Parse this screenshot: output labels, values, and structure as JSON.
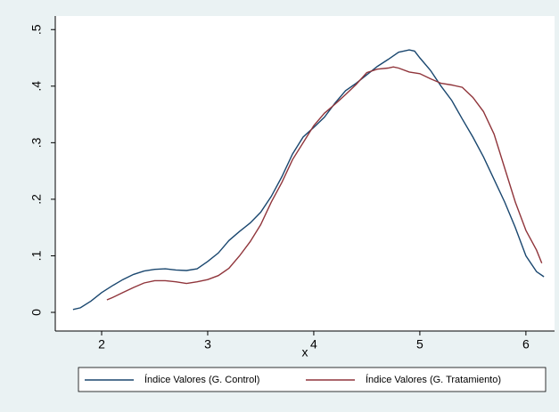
{
  "chart_data": {
    "type": "line",
    "x_label": "x",
    "xlim": [
      1.563,
      6.27
    ],
    "xticks": [
      2,
      3,
      4,
      5,
      6
    ],
    "ylim": [
      -0.033,
      0.524
    ],
    "yticks": [
      0,
      {
        "value": 0.1,
        "label": ".1"
      },
      {
        "value": 0.2,
        "label": ".2"
      },
      {
        "value": 0.3,
        "label": ".3"
      },
      {
        "value": 0.4,
        "label": ".4"
      },
      {
        "value": 0.5,
        "label": ".5"
      }
    ],
    "series": [
      {
        "name": "Índice Valores (G. Control)",
        "color": "#1a476f",
        "x": [
          1.73,
          1.8,
          1.9,
          2.0,
          2.1,
          2.2,
          2.3,
          2.4,
          2.5,
          2.6,
          2.7,
          2.8,
          2.9,
          3.0,
          3.1,
          3.2,
          3.3,
          3.4,
          3.5,
          3.6,
          3.7,
          3.8,
          3.9,
          4.0,
          4.1,
          4.2,
          4.3,
          4.4,
          4.5,
          4.6,
          4.7,
          4.8,
          4.9,
          4.95,
          5.0,
          5.1,
          5.2,
          5.3,
          5.4,
          5.5,
          5.6,
          5.7,
          5.8,
          5.9,
          6.0,
          6.1,
          6.17
        ],
        "values": [
          0.005,
          0.008,
          0.02,
          0.035,
          0.047,
          0.058,
          0.067,
          0.073,
          0.076,
          0.077,
          0.075,
          0.074,
          0.077,
          0.09,
          0.105,
          0.127,
          0.143,
          0.158,
          0.177,
          0.205,
          0.24,
          0.28,
          0.31,
          0.327,
          0.345,
          0.37,
          0.392,
          0.405,
          0.42,
          0.435,
          0.447,
          0.46,
          0.464,
          0.462,
          0.45,
          0.428,
          0.4,
          0.375,
          0.342,
          0.31,
          0.275,
          0.235,
          0.195,
          0.15,
          0.1,
          0.072,
          0.063
        ]
      },
      {
        "name": "Índice Valores (G. Tratamiento)",
        "color": "#90353b",
        "x": [
          2.05,
          2.1,
          2.2,
          2.3,
          2.4,
          2.5,
          2.6,
          2.7,
          2.8,
          2.9,
          3.0,
          3.1,
          3.2,
          3.3,
          3.4,
          3.5,
          3.6,
          3.7,
          3.8,
          3.9,
          4.0,
          4.1,
          4.2,
          4.3,
          4.4,
          4.5,
          4.6,
          4.7,
          4.75,
          4.8,
          4.9,
          5.0,
          5.1,
          5.2,
          5.3,
          5.4,
          5.5,
          5.6,
          5.7,
          5.8,
          5.9,
          6.0,
          6.1,
          6.15
        ],
        "values": [
          0.022,
          0.026,
          0.035,
          0.044,
          0.052,
          0.056,
          0.056,
          0.054,
          0.051,
          0.054,
          0.058,
          0.065,
          0.078,
          0.1,
          0.125,
          0.155,
          0.195,
          0.23,
          0.27,
          0.3,
          0.33,
          0.352,
          0.368,
          0.385,
          0.403,
          0.424,
          0.43,
          0.432,
          0.434,
          0.432,
          0.425,
          0.422,
          0.413,
          0.405,
          0.402,
          0.398,
          0.38,
          0.355,
          0.315,
          0.255,
          0.195,
          0.145,
          0.11,
          0.087
        ]
      }
    ]
  }
}
